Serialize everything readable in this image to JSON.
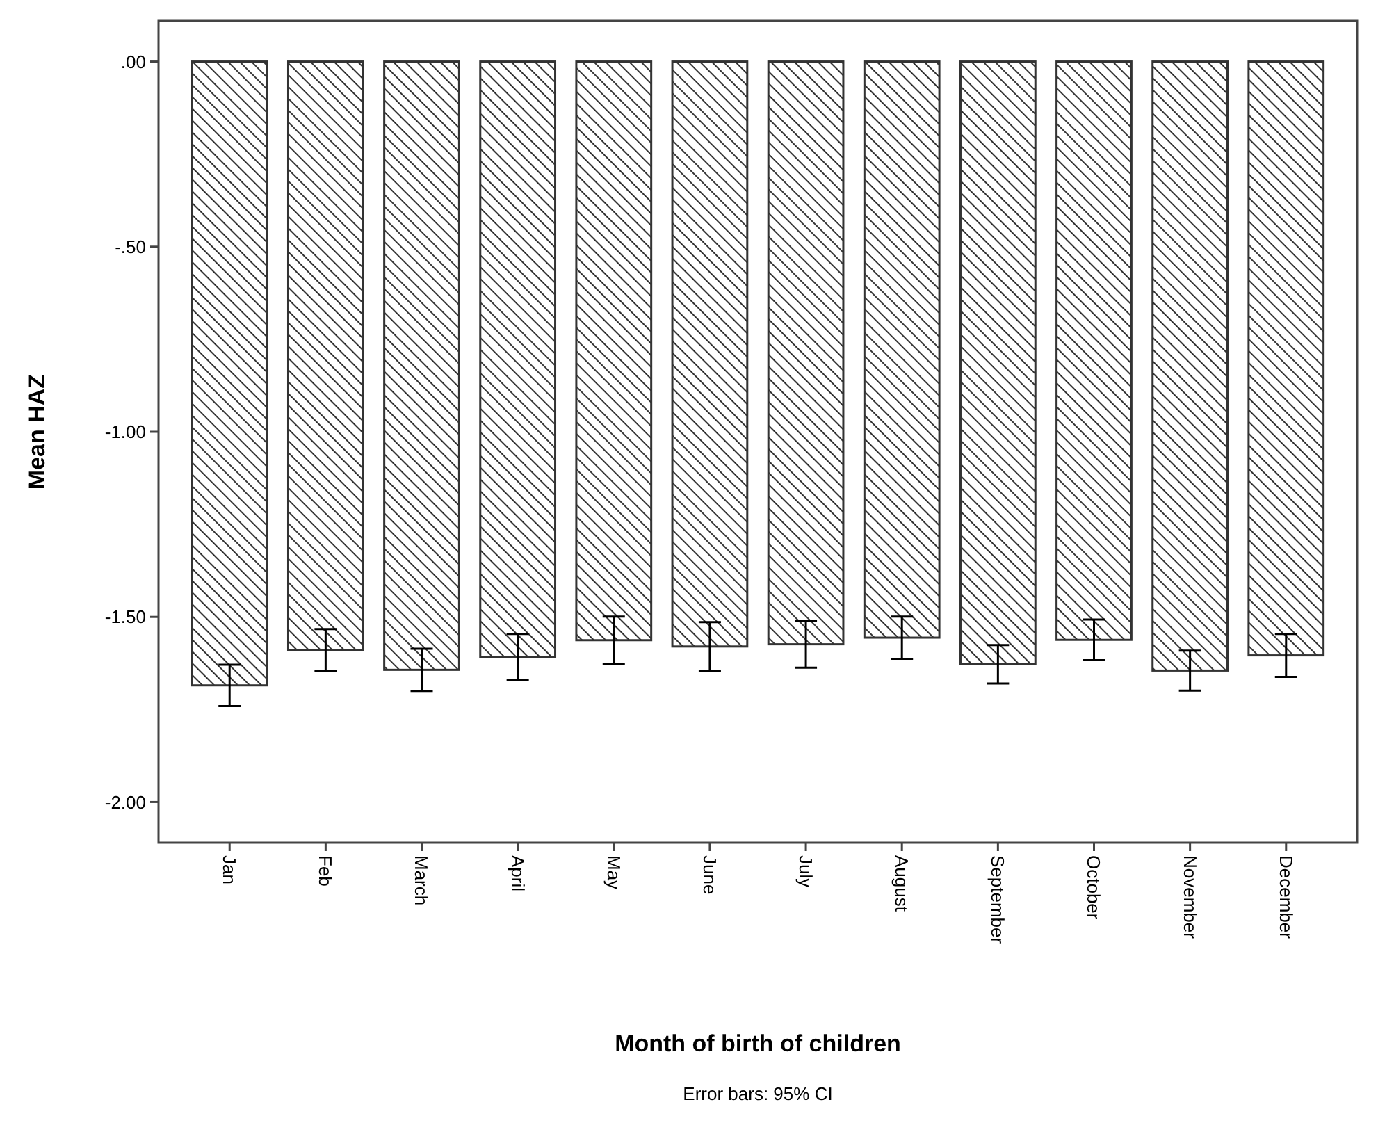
{
  "chart_data": {
    "type": "bar",
    "xlabel": "Month of birth of children",
    "ylabel": "Mean HAZ",
    "categories": [
      "Jan",
      "Feb",
      "March",
      "April",
      "May",
      "June",
      "July",
      "August",
      "September",
      "October",
      "November",
      "December"
    ],
    "values": [
      -1.685,
      -1.589,
      -1.643,
      -1.608,
      -1.563,
      -1.58,
      -1.574,
      -1.556,
      -1.628,
      -1.562,
      -1.645,
      -1.604
    ],
    "errors": [
      0.056,
      0.056,
      0.057,
      0.062,
      0.064,
      0.066,
      0.063,
      0.057,
      0.052,
      0.055,
      0.054,
      0.058
    ],
    "color": "#333333",
    "ylim": [
      -2.11,
      0.11
    ],
    "yticks": [
      {
        "value": 0,
        "label": ".00"
      },
      {
        "value": -0.5,
        "label": "-.50"
      },
      {
        "value": -1,
        "label": "-1.00"
      },
      {
        "value": -1.5,
        "label": "-1.50"
      },
      {
        "value": -2,
        "label": "-2.00"
      }
    ],
    "grid": false,
    "annotations": [
      "Error bars: 95% CI"
    ]
  }
}
